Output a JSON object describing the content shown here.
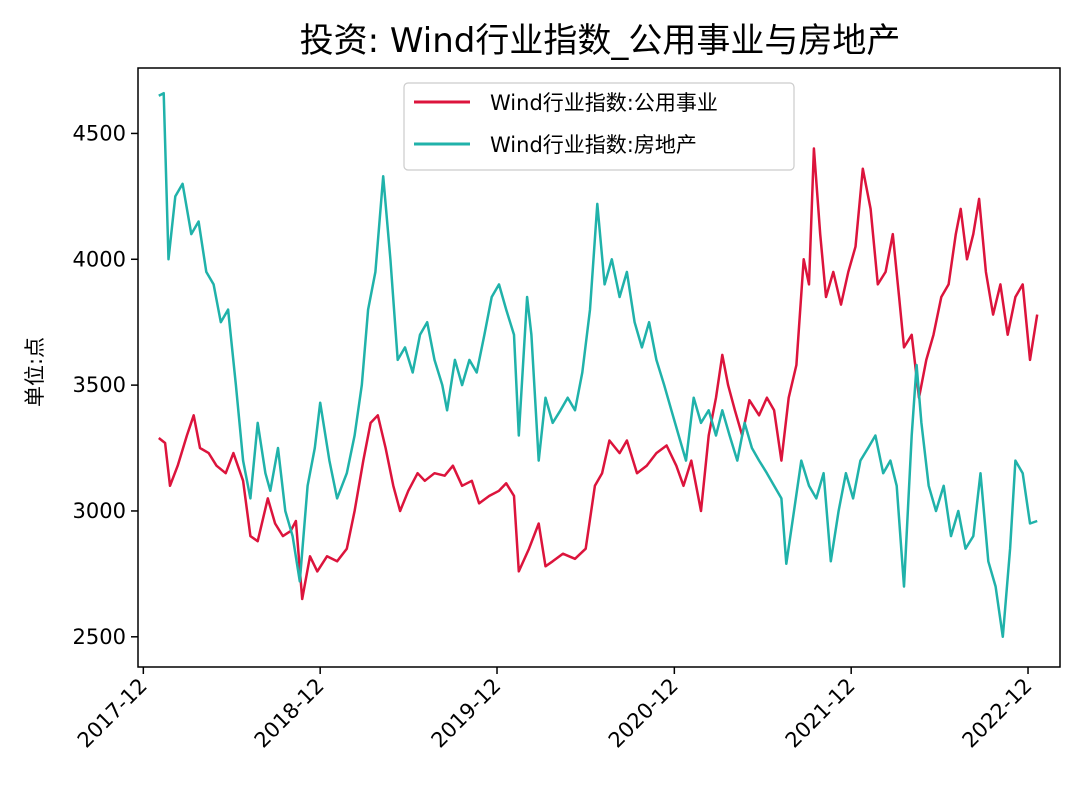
{
  "chart_data": {
    "type": "line",
    "title": "投资: Wind行业指数_公用事业与房地产",
    "xlabel": "",
    "ylabel": "单位:点",
    "x_ticks": [
      "2017-12",
      "2018-12",
      "2019-12",
      "2020-12",
      "2021-12",
      "2022-12"
    ],
    "y_ticks": [
      "2500",
      "3000",
      "3500",
      "4000",
      "4500"
    ],
    "x_range": [
      "2017-11-20",
      "2023-02-05"
    ],
    "ylim": [
      2380,
      4760
    ],
    "grid": false,
    "legend_position": "top-center",
    "series": [
      {
        "name": "Wind行业指数:公用事业",
        "color": "#DC143C",
        "points": [
          [
            "2018-01-02",
            3290
          ],
          [
            "2018-01-15",
            3270
          ],
          [
            "2018-01-25",
            3100
          ],
          [
            "2018-02-10",
            3180
          ],
          [
            "2018-03-01",
            3300
          ],
          [
            "2018-03-15",
            3380
          ],
          [
            "2018-03-28",
            3250
          ],
          [
            "2018-04-15",
            3230
          ],
          [
            "2018-05-01",
            3180
          ],
          [
            "2018-05-20",
            3150
          ],
          [
            "2018-06-05",
            3230
          ],
          [
            "2018-06-25",
            3120
          ],
          [
            "2018-07-10",
            2900
          ],
          [
            "2018-07-25",
            2880
          ],
          [
            "2018-08-15",
            3050
          ],
          [
            "2018-08-30",
            2950
          ],
          [
            "2018-09-15",
            2900
          ],
          [
            "2018-10-01",
            2920
          ],
          [
            "2018-10-12",
            2960
          ],
          [
            "2018-10-25",
            2650
          ],
          [
            "2018-11-10",
            2820
          ],
          [
            "2018-11-25",
            2760
          ],
          [
            "2018-12-15",
            2820
          ],
          [
            "2019-01-05",
            2800
          ],
          [
            "2019-01-25",
            2850
          ],
          [
            "2019-02-10",
            3000
          ],
          [
            "2019-02-28",
            3200
          ],
          [
            "2019-03-15",
            3350
          ],
          [
            "2019-03-30",
            3380
          ],
          [
            "2019-04-15",
            3250
          ],
          [
            "2019-05-01",
            3100
          ],
          [
            "2019-05-15",
            3000
          ],
          [
            "2019-06-01",
            3080
          ],
          [
            "2019-06-20",
            3150
          ],
          [
            "2019-07-05",
            3120
          ],
          [
            "2019-07-25",
            3150
          ],
          [
            "2019-08-15",
            3140
          ],
          [
            "2019-09-01",
            3180
          ],
          [
            "2019-09-20",
            3100
          ],
          [
            "2019-10-10",
            3120
          ],
          [
            "2019-10-25",
            3030
          ],
          [
            "2019-11-15",
            3060
          ],
          [
            "2019-12-05",
            3080
          ],
          [
            "2019-12-20",
            3110
          ],
          [
            "2020-01-05",
            3060
          ],
          [
            "2020-01-15",
            2760
          ],
          [
            "2020-02-05",
            2850
          ],
          [
            "2020-02-25",
            2950
          ],
          [
            "2020-03-10",
            2780
          ],
          [
            "2020-03-25",
            2800
          ],
          [
            "2020-04-15",
            2830
          ],
          [
            "2020-05-10",
            2810
          ],
          [
            "2020-06-01",
            2850
          ],
          [
            "2020-06-20",
            3100
          ],
          [
            "2020-07-05",
            3150
          ],
          [
            "2020-07-20",
            3280
          ],
          [
            "2020-08-10",
            3230
          ],
          [
            "2020-08-25",
            3280
          ],
          [
            "2020-09-15",
            3150
          ],
          [
            "2020-10-05",
            3180
          ],
          [
            "2020-10-25",
            3230
          ],
          [
            "2020-11-15",
            3260
          ],
          [
            "2020-12-05",
            3180
          ],
          [
            "2020-12-20",
            3100
          ],
          [
            "2021-01-05",
            3200
          ],
          [
            "2021-01-25",
            3000
          ],
          [
            "2021-02-10",
            3300
          ],
          [
            "2021-02-25",
            3450
          ],
          [
            "2021-03-10",
            3620
          ],
          [
            "2021-03-22",
            3500
          ],
          [
            "2021-04-05",
            3400
          ],
          [
            "2021-04-20",
            3300
          ],
          [
            "2021-05-05",
            3440
          ],
          [
            "2021-05-25",
            3380
          ],
          [
            "2021-06-10",
            3450
          ],
          [
            "2021-06-25",
            3400
          ],
          [
            "2021-07-10",
            3200
          ],
          [
            "2021-07-25",
            3450
          ],
          [
            "2021-08-10",
            3580
          ],
          [
            "2021-08-25",
            4000
          ],
          [
            "2021-09-05",
            3900
          ],
          [
            "2021-09-15",
            4440
          ],
          [
            "2021-09-28",
            4100
          ],
          [
            "2021-10-10",
            3850
          ],
          [
            "2021-10-25",
            3950
          ],
          [
            "2021-11-10",
            3820
          ],
          [
            "2021-11-25",
            3950
          ],
          [
            "2021-12-10",
            4050
          ],
          [
            "2021-12-25",
            4360
          ],
          [
            "2022-01-10",
            4200
          ],
          [
            "2022-01-25",
            3900
          ],
          [
            "2022-02-10",
            3950
          ],
          [
            "2022-02-25",
            4100
          ],
          [
            "2022-03-10",
            3850
          ],
          [
            "2022-03-20",
            3650
          ],
          [
            "2022-04-05",
            3700
          ],
          [
            "2022-04-20",
            3450
          ],
          [
            "2022-05-05",
            3600
          ],
          [
            "2022-05-20",
            3700
          ],
          [
            "2022-06-05",
            3850
          ],
          [
            "2022-06-20",
            3900
          ],
          [
            "2022-07-05",
            4100
          ],
          [
            "2022-07-15",
            4200
          ],
          [
            "2022-07-28",
            4000
          ],
          [
            "2022-08-10",
            4100
          ],
          [
            "2022-08-22",
            4240
          ],
          [
            "2022-09-05",
            3950
          ],
          [
            "2022-09-20",
            3780
          ],
          [
            "2022-10-05",
            3900
          ],
          [
            "2022-10-20",
            3700
          ],
          [
            "2022-11-05",
            3850
          ],
          [
            "2022-11-20",
            3900
          ],
          [
            "2022-12-05",
            3600
          ],
          [
            "2022-12-20",
            3780
          ]
        ]
      },
      {
        "name": "Wind行业指数:房地产",
        "color": "#20B2AA",
        "points": [
          [
            "2018-01-02",
            4650
          ],
          [
            "2018-01-12",
            4660
          ],
          [
            "2018-01-22",
            4000
          ],
          [
            "2018-02-05",
            4250
          ],
          [
            "2018-02-20",
            4300
          ],
          [
            "2018-03-10",
            4100
          ],
          [
            "2018-03-25",
            4150
          ],
          [
            "2018-04-10",
            3950
          ],
          [
            "2018-04-25",
            3900
          ],
          [
            "2018-05-10",
            3750
          ],
          [
            "2018-05-25",
            3800
          ],
          [
            "2018-06-10",
            3500
          ],
          [
            "2018-06-25",
            3200
          ],
          [
            "2018-07-10",
            3050
          ],
          [
            "2018-07-25",
            3350
          ],
          [
            "2018-08-10",
            3150
          ],
          [
            "2018-08-20",
            3080
          ],
          [
            "2018-09-05",
            3250
          ],
          [
            "2018-09-20",
            3000
          ],
          [
            "2018-10-05",
            2900
          ],
          [
            "2018-10-20",
            2720
          ],
          [
            "2018-11-05",
            3100
          ],
          [
            "2018-11-20",
            3250
          ],
          [
            "2018-12-01",
            3430
          ],
          [
            "2018-12-20",
            3200
          ],
          [
            "2019-01-05",
            3050
          ],
          [
            "2019-01-25",
            3150
          ],
          [
            "2019-02-10",
            3300
          ],
          [
            "2019-02-25",
            3500
          ],
          [
            "2019-03-10",
            3800
          ],
          [
            "2019-03-25",
            3950
          ],
          [
            "2019-04-10",
            4330
          ],
          [
            "2019-04-25",
            4000
          ],
          [
            "2019-05-10",
            3600
          ],
          [
            "2019-05-25",
            3650
          ],
          [
            "2019-06-10",
            3550
          ],
          [
            "2019-06-25",
            3700
          ],
          [
            "2019-07-10",
            3750
          ],
          [
            "2019-07-25",
            3600
          ],
          [
            "2019-08-10",
            3500
          ],
          [
            "2019-08-20",
            3400
          ],
          [
            "2019-09-05",
            3600
          ],
          [
            "2019-09-20",
            3500
          ],
          [
            "2019-10-05",
            3600
          ],
          [
            "2019-10-20",
            3550
          ],
          [
            "2019-11-05",
            3700
          ],
          [
            "2019-11-20",
            3850
          ],
          [
            "2019-12-05",
            3900
          ],
          [
            "2019-12-20",
            3800
          ],
          [
            "2020-01-05",
            3700
          ],
          [
            "2020-01-15",
            3300
          ],
          [
            "2020-02-01",
            3850
          ],
          [
            "2020-02-10",
            3700
          ],
          [
            "2020-02-25",
            3200
          ],
          [
            "2020-03-10",
            3450
          ],
          [
            "2020-03-25",
            3350
          ],
          [
            "2020-04-10",
            3400
          ],
          [
            "2020-04-25",
            3450
          ],
          [
            "2020-05-10",
            3400
          ],
          [
            "2020-05-25",
            3550
          ],
          [
            "2020-06-10",
            3800
          ],
          [
            "2020-06-25",
            4220
          ],
          [
            "2020-07-10",
            3900
          ],
          [
            "2020-07-25",
            4000
          ],
          [
            "2020-08-10",
            3850
          ],
          [
            "2020-08-25",
            3950
          ],
          [
            "2020-09-10",
            3750
          ],
          [
            "2020-09-25",
            3650
          ],
          [
            "2020-10-10",
            3750
          ],
          [
            "2020-10-25",
            3600
          ],
          [
            "2020-11-10",
            3500
          ],
          [
            "2020-11-25",
            3400
          ],
          [
            "2020-12-10",
            3300
          ],
          [
            "2020-12-25",
            3200
          ],
          [
            "2021-01-10",
            3450
          ],
          [
            "2021-01-25",
            3350
          ],
          [
            "2021-02-10",
            3400
          ],
          [
            "2021-02-25",
            3300
          ],
          [
            "2021-03-10",
            3400
          ],
          [
            "2021-03-25",
            3300
          ],
          [
            "2021-04-10",
            3200
          ],
          [
            "2021-04-25",
            3350
          ],
          [
            "2021-05-10",
            3250
          ],
          [
            "2021-05-25",
            3200
          ],
          [
            "2021-06-10",
            3150
          ],
          [
            "2021-06-25",
            3100
          ],
          [
            "2021-07-10",
            3050
          ],
          [
            "2021-07-20",
            2790
          ],
          [
            "2021-08-05",
            3000
          ],
          [
            "2021-08-20",
            3200
          ],
          [
            "2021-09-05",
            3100
          ],
          [
            "2021-09-20",
            3050
          ],
          [
            "2021-10-05",
            3150
          ],
          [
            "2021-10-20",
            2800
          ],
          [
            "2021-11-05",
            3000
          ],
          [
            "2021-11-20",
            3150
          ],
          [
            "2021-12-05",
            3050
          ],
          [
            "2021-12-20",
            3200
          ],
          [
            "2022-01-05",
            3250
          ],
          [
            "2022-01-20",
            3300
          ],
          [
            "2022-02-05",
            3150
          ],
          [
            "2022-02-20",
            3200
          ],
          [
            "2022-03-05",
            3100
          ],
          [
            "2022-03-20",
            2700
          ],
          [
            "2022-04-05",
            3300
          ],
          [
            "2022-04-15",
            3580
          ],
          [
            "2022-04-25",
            3350
          ],
          [
            "2022-05-10",
            3100
          ],
          [
            "2022-05-25",
            3000
          ],
          [
            "2022-06-10",
            3100
          ],
          [
            "2022-06-25",
            2900
          ],
          [
            "2022-07-10",
            3000
          ],
          [
            "2022-07-25",
            2850
          ],
          [
            "2022-08-10",
            2900
          ],
          [
            "2022-08-25",
            3150
          ],
          [
            "2022-09-10",
            2800
          ],
          [
            "2022-09-25",
            2700
          ],
          [
            "2022-10-10",
            2500
          ],
          [
            "2022-10-25",
            2850
          ],
          [
            "2022-11-05",
            3200
          ],
          [
            "2022-11-20",
            3150
          ],
          [
            "2022-12-05",
            2950
          ],
          [
            "2022-12-20",
            2960
          ]
        ]
      }
    ]
  }
}
